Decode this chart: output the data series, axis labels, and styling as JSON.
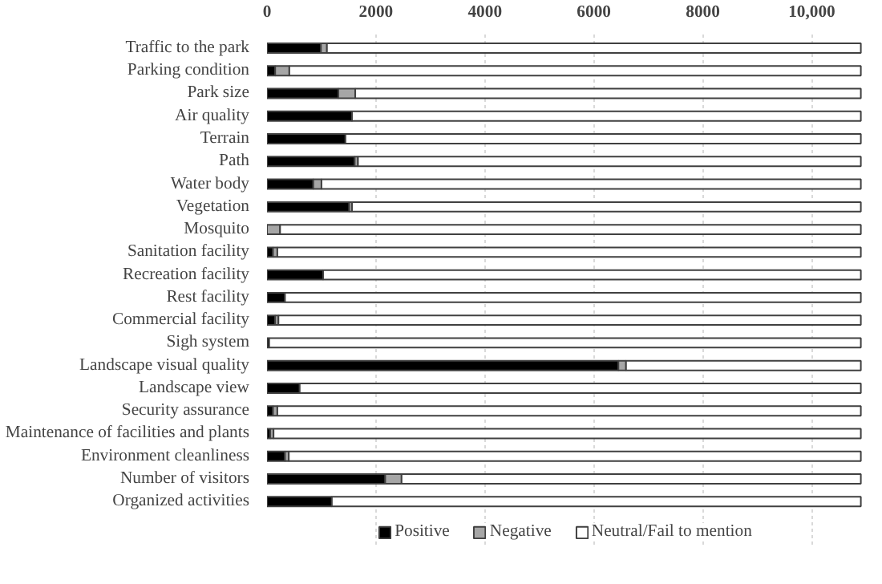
{
  "chart_data": {
    "type": "bar",
    "orientation": "horizontal",
    "stacked": true,
    "categories": [
      "Traffic to the park",
      "Parking condition",
      "Park size",
      "Air quality",
      "Terrain",
      "Path",
      "Water body",
      "Vegetation",
      "Mosquito",
      "Sanitation facility",
      "Recreation facility",
      "Rest facility",
      "Commercial facility",
      "Sigh system",
      "Landscape visual quality",
      "Landscape view",
      "Security assurance",
      "Maintenance of facilities and plants",
      "Environment cleanliness",
      "Number of visitors",
      "Organized activities"
    ],
    "series": [
      {
        "name": "Positive",
        "color": "#000000",
        "values": [
          990,
          150,
          1310,
          1560,
          1440,
          1610,
          850,
          1510,
          0,
          110,
          1030,
          330,
          150,
          40,
          6450,
          600,
          110,
          60,
          330,
          2170,
          1190
        ]
      },
      {
        "name": "Negative",
        "color": "#a6a6a6",
        "values": [
          110,
          260,
          310,
          0,
          0,
          60,
          150,
          50,
          240,
          80,
          0,
          0,
          60,
          0,
          140,
          0,
          80,
          60,
          70,
          300,
          0
        ]
      },
      {
        "name": "Neutral/Fail to mention",
        "color": "#ffffff",
        "values": [
          9800,
          10490,
          9280,
          9340,
          9460,
          9230,
          9900,
          9340,
          10660,
          10710,
          9870,
          10570,
          10690,
          10860,
          4310,
          10300,
          10710,
          10780,
          10500,
          8430,
          9710
        ]
      }
    ],
    "xlim": [
      0,
      10950
    ],
    "xticks": [
      0,
      2000,
      4000,
      6000,
      8000,
      {
        "value": 10000,
        "label": "10,000"
      }
    ],
    "grid": "x",
    "legend": "bottom"
  }
}
